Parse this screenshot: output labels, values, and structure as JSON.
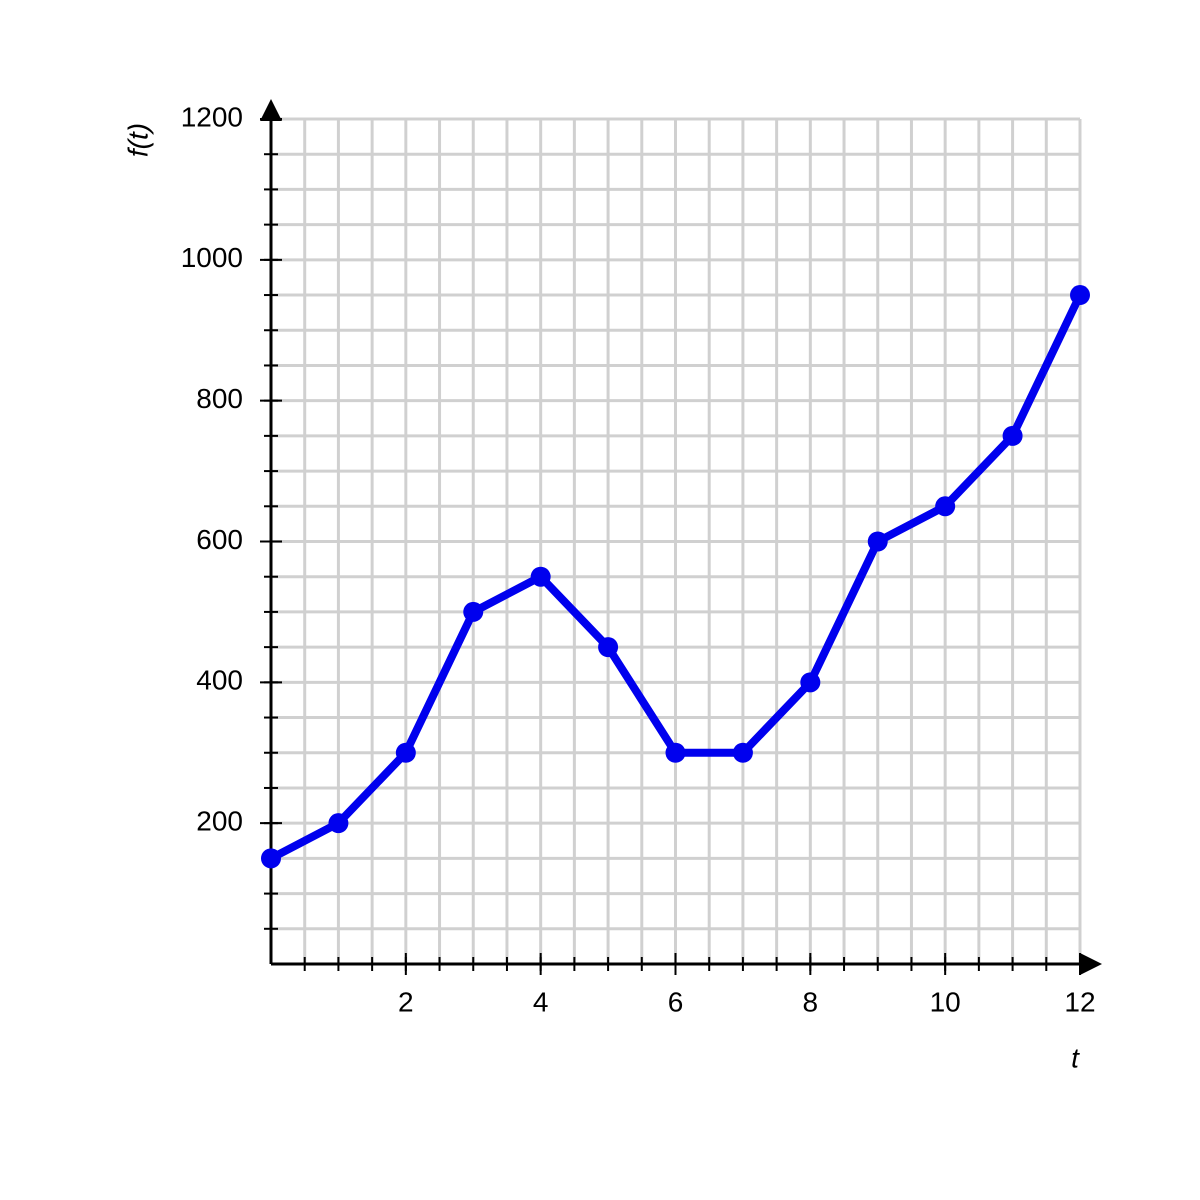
{
  "chart_data": {
    "type": "line",
    "x_label": "t",
    "y_label": "f(t)",
    "x": [
      0,
      1,
      2,
      3,
      4,
      5,
      6,
      7,
      8,
      9,
      10,
      11,
      12
    ],
    "series": [
      {
        "color": "#0000ee",
        "values": [
          150,
          200,
          300,
          500,
          550,
          450,
          300,
          300,
          400,
          600,
          650,
          750,
          950
        ]
      }
    ],
    "xlim": [
      0,
      12
    ],
    "ylim": [
      0,
      1200
    ],
    "xticks": [
      2,
      4,
      6,
      8,
      10,
      12
    ],
    "yticks": [
      200,
      400,
      600,
      800,
      1000,
      1200
    ],
    "xminorticks": [
      0.5,
      1,
      1.5,
      2,
      2.5,
      3,
      3.5,
      4,
      4.5,
      5,
      5.5,
      6,
      6.5,
      7,
      7.5,
      8,
      8.5,
      9,
      9.5,
      10,
      10.5,
      11,
      11.5,
      12
    ],
    "yminorticks": [
      50,
      100,
      150,
      200,
      250,
      300,
      350,
      400,
      450,
      500,
      550,
      600,
      650,
      700,
      750,
      800,
      850,
      900,
      950,
      1000,
      1050,
      1100,
      1150,
      1200
    ],
    "grid": true,
    "markers": true
  }
}
